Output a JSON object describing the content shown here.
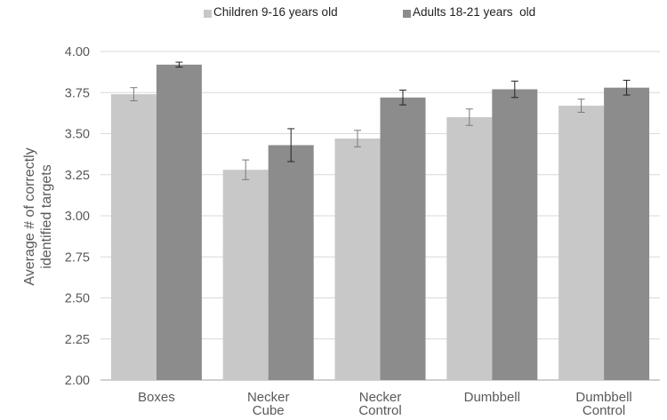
{
  "chart_data": {
    "type": "bar",
    "title": "",
    "xlabel": "",
    "ylabel_lines": [
      "Average # of correctly",
      "identified targets"
    ],
    "ylim": [
      2.0,
      4.0
    ],
    "yticks": [
      "2.00",
      "2.25",
      "2.50",
      "2.75",
      "3.00",
      "3.25",
      "3.50",
      "3.75",
      "4.00"
    ],
    "ytick_values": [
      2.0,
      2.25,
      2.5,
      2.75,
      3.0,
      3.25,
      3.5,
      3.75,
      4.0
    ],
    "grid": true,
    "legend_position": "top",
    "categories": [
      [
        "Boxes"
      ],
      [
        "Necker",
        "Cube"
      ],
      [
        "Necker",
        "Control"
      ],
      [
        "Dumbbell"
      ],
      [
        "Dumbbell",
        "Control"
      ]
    ],
    "series": [
      {
        "name": "Children 9-16 years old",
        "color": "#c8c8c8",
        "values": [
          3.74,
          3.28,
          3.47,
          3.6,
          3.67
        ],
        "errors": [
          0.04,
          0.06,
          0.05,
          0.05,
          0.04
        ]
      },
      {
        "name": "Adults 18-21 years  old",
        "color": "#8c8c8c",
        "values": [
          3.92,
          3.43,
          3.72,
          3.77,
          3.78
        ],
        "errors": [
          0.015,
          0.1,
          0.045,
          0.05,
          0.045
        ]
      }
    ]
  }
}
